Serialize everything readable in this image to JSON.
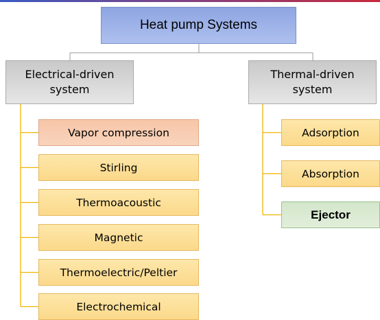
{
  "title": "Heat pump Systems",
  "groups": [
    {
      "label": "Electrical-driven system",
      "children": [
        "Vapor compression",
        "Stirling",
        "Thermoacoustic",
        "Magnetic",
        "Thermoelectric/Peltier",
        "Electrochemical"
      ]
    },
    {
      "label": "Thermal-driven system",
      "children": [
        "Adsorption",
        "Absorption",
        "Ejector"
      ]
    }
  ]
}
